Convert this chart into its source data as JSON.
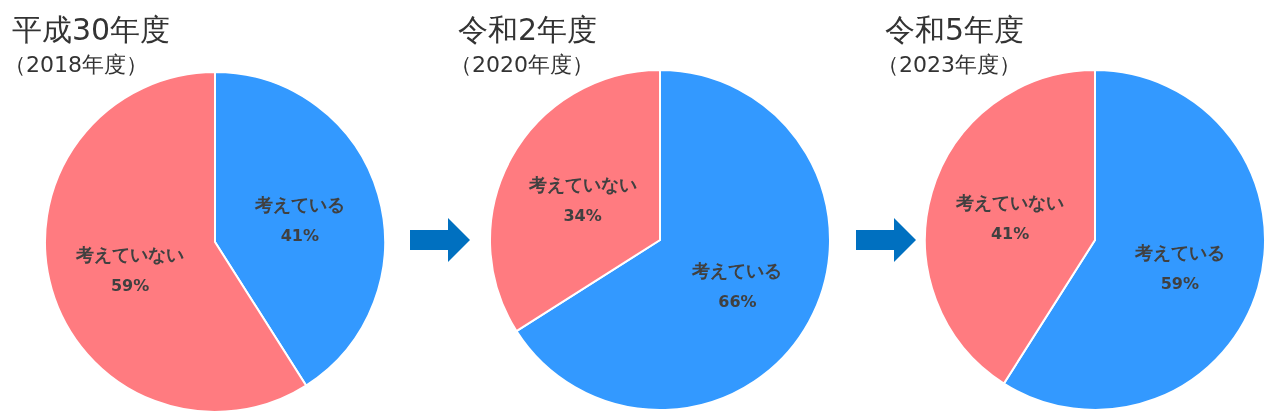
{
  "chart_data": [
    {
      "type": "pie",
      "title": "平成30年度",
      "subtitle": "（2018年度）",
      "categories": [
        "考えている",
        "考えていない"
      ],
      "values": [
        41,
        59
      ],
      "value_labels": [
        "41%",
        "59%"
      ],
      "colors": [
        "#3399ff",
        "#ff7b80"
      ]
    },
    {
      "type": "pie",
      "title": "令和2年度",
      "subtitle": "（2020年度）",
      "categories": [
        "考えている",
        "考えていない"
      ],
      "values": [
        66,
        34
      ],
      "value_labels": [
        "66%",
        "34%"
      ],
      "colors": [
        "#3399ff",
        "#ff7b80"
      ]
    },
    {
      "type": "pie",
      "title": "令和5年度",
      "subtitle": "（2023年度）",
      "categories": [
        "考えている",
        "考えていない"
      ],
      "values": [
        59,
        41
      ],
      "value_labels": [
        "59%",
        "41%"
      ],
      "colors": [
        "#3399ff",
        "#ff7b80"
      ]
    }
  ]
}
